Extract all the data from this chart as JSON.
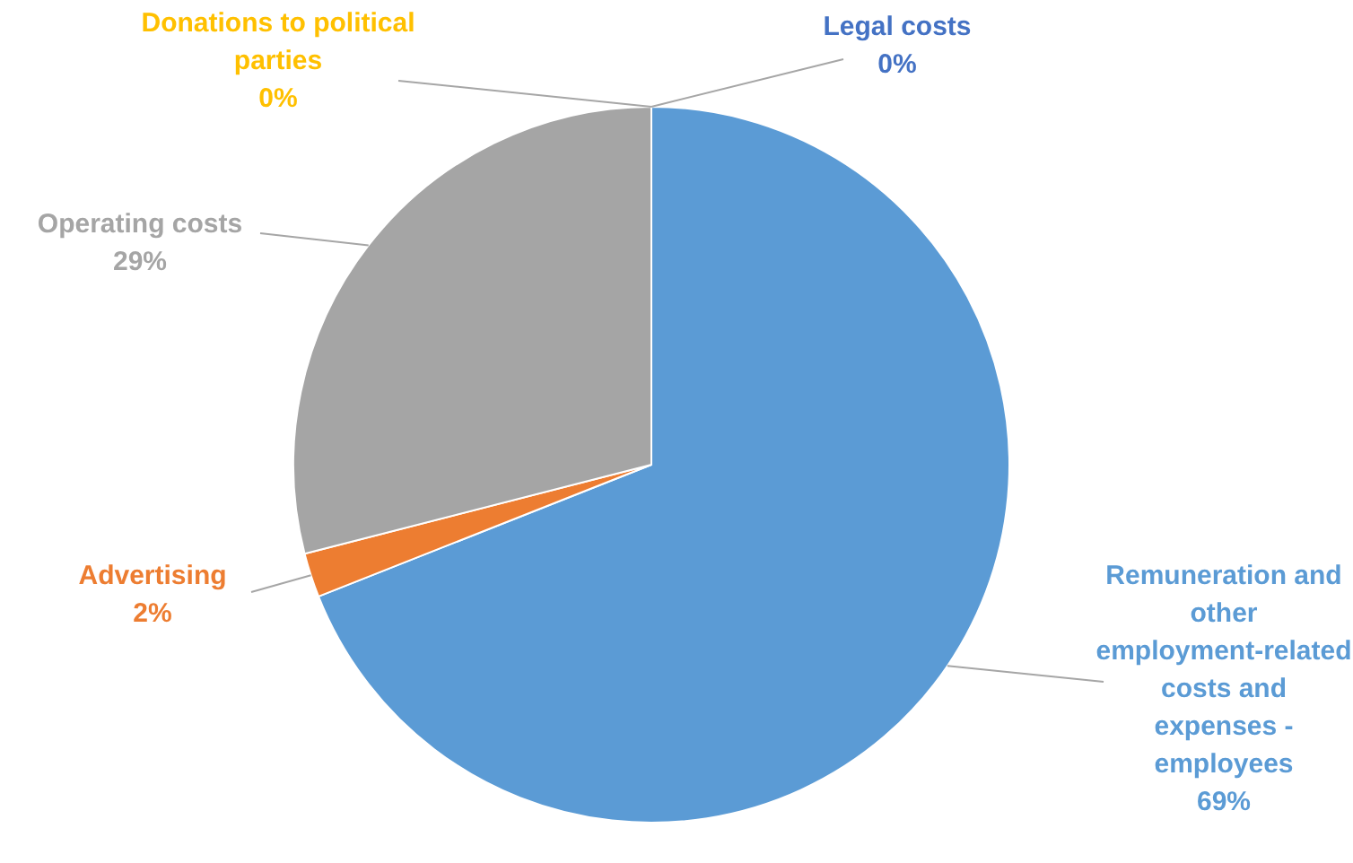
{
  "chart_data": {
    "type": "pie",
    "categories": [
      "Legal costs",
      "Remuneration and other employment-related costs and expenses - employees",
      "Advertising",
      "Operating costs",
      "Donations to political parties"
    ],
    "values": [
      0,
      69,
      2,
      29,
      0
    ],
    "value_labels": [
      "0%",
      "69%",
      "2%",
      "29%",
      "0%"
    ],
    "colors": [
      "#4472c4",
      "#5b9bd5",
      "#ed7d31",
      "#a5a5a5",
      "#ffc000"
    ],
    "legend": false
  }
}
